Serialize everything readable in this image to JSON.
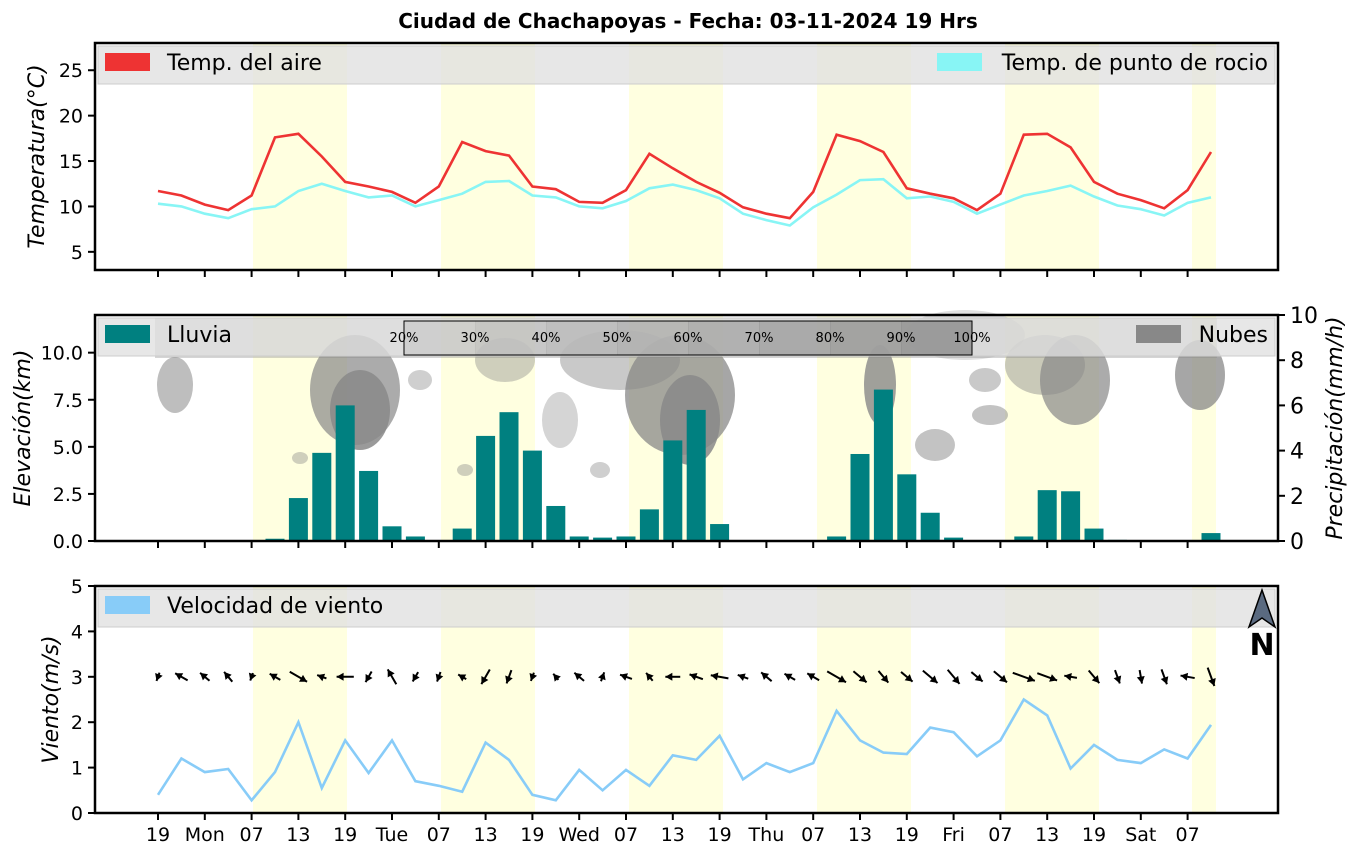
{
  "title": "Ciudad de Chachapoyas   -   Fecha: 03-11-2024 19 Hrs",
  "x_ticks": [
    "19",
    "Mon",
    "07",
    "13",
    "19",
    "Tue",
    "07",
    "13",
    "19",
    "Wed",
    "07",
    "13",
    "19",
    "Thu",
    "07",
    "13",
    "19",
    "Fri",
    "07",
    "13",
    "19",
    "Sat",
    "07"
  ],
  "colors": {
    "air_temp": "#ee3333",
    "dew_point": "#88f5f5",
    "rain": "#008080",
    "clouds": "#888888",
    "wind": "#88ccf8",
    "daylight": "#ffffe0"
  },
  "legend_box_bg": "#e0e0e0",
  "chart_data": [
    {
      "type": "line",
      "ylabel": "Temperatura(°C)",
      "ylim": [
        3,
        28
      ],
      "yticks": [
        "5",
        "10",
        "15",
        "20",
        "25"
      ],
      "legend": [
        "Temp. del aire",
        "Temp. de punto de rocio"
      ],
      "legend_placement": "top",
      "series": [
        {
          "name": "Temp. del aire",
          "values": [
            11.7,
            11.2,
            10.2,
            9.6,
            11.2,
            17.6,
            18.0,
            15.5,
            12.7,
            12.2,
            11.6,
            10.4,
            12.2,
            17.1,
            16.1,
            15.6,
            12.2,
            11.9,
            10.5,
            10.4,
            11.8,
            15.8,
            14.2,
            12.7,
            11.5,
            9.9,
            9.2,
            8.7,
            11.6,
            17.9,
            17.2,
            16.0,
            12.0,
            11.4,
            10.9,
            9.6,
            11.4,
            17.9,
            18.0,
            16.5,
            12.7,
            11.4,
            10.7,
            9.8,
            11.8,
            16.0
          ]
        },
        {
          "name": "Temp. de punto de rocio",
          "values": [
            10.3,
            10.0,
            9.2,
            8.7,
            9.7,
            10.0,
            11.7,
            12.5,
            11.7,
            11.0,
            11.2,
            10.0,
            10.7,
            11.4,
            12.7,
            12.8,
            11.2,
            11.0,
            10.0,
            9.8,
            10.6,
            12.0,
            12.4,
            11.8,
            10.9,
            9.2,
            8.5,
            7.9,
            9.9,
            11.3,
            12.9,
            13.0,
            10.9,
            11.1,
            10.5,
            9.2,
            10.2,
            11.2,
            11.7,
            12.3,
            11.1,
            10.1,
            9.7,
            9.0,
            10.4,
            11.0
          ]
        }
      ]
    },
    {
      "type": "bar",
      "ylabel": "Elevación(km)",
      "ylim": [
        0,
        12
      ],
      "yticks": [
        "0.0",
        "2.5",
        "5.0",
        "7.5",
        "10.0"
      ],
      "y2label": "Precipitación(mm/h)",
      "y2lim": [
        0,
        10
      ],
      "y2ticks": [
        "0",
        "2",
        "4",
        "6",
        "8",
        "10"
      ],
      "legend": [
        "Lluvia",
        "Nubes"
      ],
      "colorbar_labels": [
        "20%",
        "30%",
        "40%",
        "50%",
        "60%",
        "70%",
        "80%",
        "90%",
        "100%"
      ],
      "series": [
        {
          "name": "Lluvia",
          "values": [
            0,
            0,
            0,
            0,
            0,
            0.1,
            1.9,
            3.9,
            6.0,
            3.1,
            0.65,
            0.2,
            0,
            0.55,
            4.65,
            5.7,
            4.0,
            1.55,
            0.2,
            0.15,
            0.2,
            1.4,
            4.45,
            5.8,
            0.75,
            0,
            0,
            0,
            0,
            0.2,
            3.85,
            6.7,
            2.95,
            1.25,
            0.15,
            0,
            0,
            0.2,
            2.25,
            2.2,
            0.55,
            0.05,
            0,
            0,
            0,
            0.35
          ]
        }
      ]
    },
    {
      "type": "line",
      "ylabel": "Viento(m/s)",
      "ylim": [
        0,
        5
      ],
      "yticks": [
        "0",
        "1",
        "2",
        "3",
        "4",
        "5"
      ],
      "legend": [
        "Velocidad de viento"
      ],
      "north_label": "N",
      "series": [
        {
          "name": "Velocidad de viento",
          "values": [
            0.4,
            1.2,
            0.9,
            0.97,
            0.28,
            0.9,
            2.0,
            0.55,
            1.6,
            0.88,
            1.6,
            0.7,
            0.6,
            0.47,
            1.55,
            1.17,
            0.4,
            0.28,
            0.95,
            0.5,
            0.95,
            0.6,
            1.27,
            1.17,
            1.7,
            0.74,
            1.1,
            0.9,
            1.1,
            2.25,
            1.6,
            1.33,
            1.3,
            1.88,
            1.78,
            1.25,
            1.6,
            2.5,
            2.15,
            0.98,
            1.5,
            1.17,
            1.1,
            1.4,
            1.2,
            1.94
          ]
        }
      ],
      "wind_direction_deg": [
        200,
        300,
        310,
        320,
        200,
        300,
        120,
        290,
        270,
        210,
        330,
        210,
        200,
        300,
        210,
        200,
        200,
        320,
        310,
        20,
        290,
        320,
        270,
        290,
        280,
        290,
        310,
        300,
        300,
        120,
        130,
        140,
        130,
        130,
        140,
        130,
        130,
        110,
        110,
        280,
        140,
        160,
        170,
        160,
        280,
        160
      ]
    }
  ]
}
